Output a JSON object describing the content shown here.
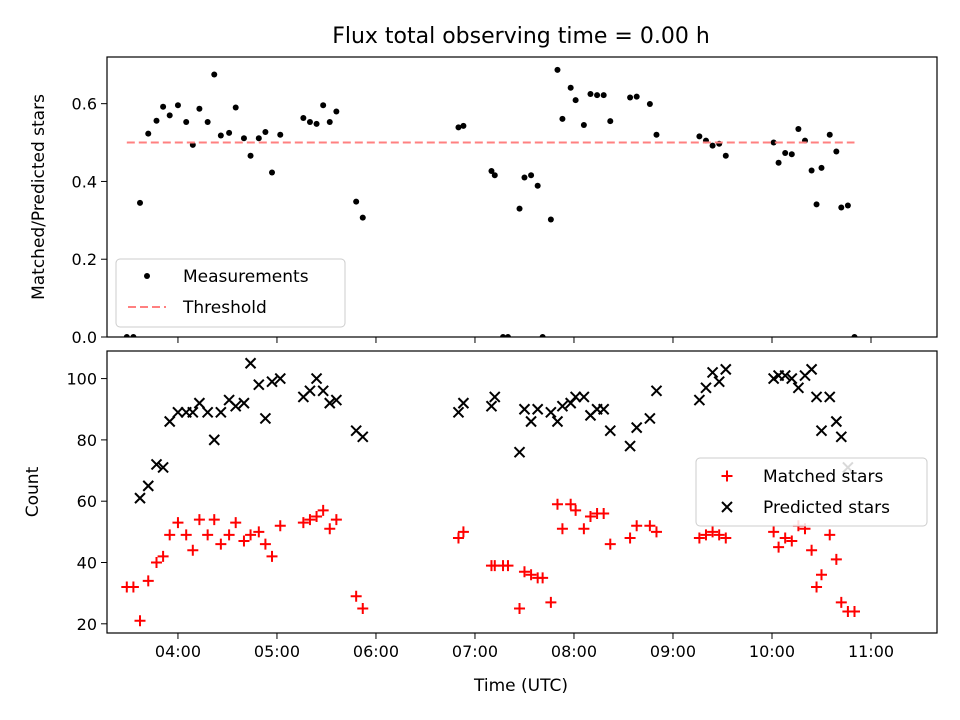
{
  "figure": {
    "title": "Flux total observing time = 0.00 h",
    "xlabel": "Time (UTC)"
  },
  "colors": {
    "measurements": "#000000",
    "threshold": "#ff8080",
    "matched": "#ff0000",
    "predicted": "#000000"
  },
  "chart_data": [
    {
      "type": "scatter",
      "panel": "top",
      "ylabel": "Matched/Predicted stars",
      "xlim": [
        "03:17",
        "11:40"
      ],
      "ylim": [
        0,
        0.72
      ],
      "xticks": [
        "04:00",
        "05:00",
        "06:00",
        "07:00",
        "08:00",
        "09:00",
        "10:00",
        "11:00"
      ],
      "yticks": [
        0.0,
        0.2,
        0.4,
        0.6
      ],
      "ytick_labels": [
        "0.0",
        "0.2",
        "0.4",
        "0.6"
      ],
      "legend": {
        "placement": "lower-left",
        "entries": [
          "Measurements",
          "Threshold"
        ]
      },
      "series": [
        {
          "name": "Measurements",
          "marker": "dot",
          "points": [
            [
              "03:29",
              0.0
            ],
            [
              "03:33",
              0.0
            ],
            [
              "03:37",
              0.345
            ],
            [
              "03:42",
              0.523
            ],
            [
              "03:47",
              0.556
            ],
            [
              "03:51",
              0.592
            ],
            [
              "03:55",
              0.57
            ],
            [
              "04:00",
              0.596
            ],
            [
              "04:05",
              0.553
            ],
            [
              "04:09",
              0.494
            ],
            [
              "04:13",
              0.587
            ],
            [
              "04:18",
              0.553
            ],
            [
              "04:22",
              0.675
            ],
            [
              "04:26",
              0.518
            ],
            [
              "04:31",
              0.525
            ],
            [
              "04:35",
              0.59
            ],
            [
              "04:40",
              0.511
            ],
            [
              "04:44",
              0.466
            ],
            [
              "04:49",
              0.511
            ],
            [
              "04:53",
              0.527
            ],
            [
              "04:57",
              0.423
            ],
            [
              "05:02",
              0.52
            ],
            [
              "05:16",
              0.563
            ],
            [
              "05:20",
              0.553
            ],
            [
              "05:24",
              0.548
            ],
            [
              "05:28",
              0.596
            ],
            [
              "05:32",
              0.553
            ],
            [
              "05:36",
              0.58
            ],
            [
              "05:48",
              0.348
            ],
            [
              "05:52",
              0.307
            ],
            [
              "06:50",
              0.539
            ],
            [
              "06:53",
              0.543
            ],
            [
              "07:10",
              0.427
            ],
            [
              "07:12",
              0.416
            ],
            [
              "07:17",
              0.0
            ],
            [
              "07:20",
              0.0
            ],
            [
              "07:27",
              0.33
            ],
            [
              "07:30",
              0.41
            ],
            [
              "07:34",
              0.416
            ],
            [
              "07:38",
              0.389
            ],
            [
              "07:41",
              0.0
            ],
            [
              "07:46",
              0.302
            ],
            [
              "07:50",
              0.687
            ],
            [
              "07:53",
              0.561
            ],
            [
              "07:58",
              0.641
            ],
            [
              "08:01",
              0.609
            ],
            [
              "08:06",
              0.545
            ],
            [
              "08:10",
              0.625
            ],
            [
              "08:14",
              0.622
            ],
            [
              "08:18",
              0.622
            ],
            [
              "08:22",
              0.555
            ],
            [
              "08:34",
              0.616
            ],
            [
              "08:38",
              0.618
            ],
            [
              "08:46",
              0.599
            ],
            [
              "08:50",
              0.52
            ],
            [
              "09:16",
              0.516
            ],
            [
              "09:20",
              0.505
            ],
            [
              "09:24",
              0.492
            ],
            [
              "09:28",
              0.497
            ],
            [
              "09:32",
              0.466
            ],
            [
              "10:01",
              0.5
            ],
            [
              "10:04",
              0.448
            ],
            [
              "10:08",
              0.473
            ],
            [
              "10:12",
              0.47
            ],
            [
              "10:16",
              0.535
            ],
            [
              "10:20",
              0.505
            ],
            [
              "10:24",
              0.428
            ],
            [
              "10:27",
              0.341
            ],
            [
              "10:30",
              0.435
            ],
            [
              "10:35",
              0.52
            ],
            [
              "10:39",
              0.477
            ],
            [
              "10:42",
              0.333
            ],
            [
              "10:46",
              0.338
            ],
            [
              "10:50",
              0.0
            ]
          ]
        },
        {
          "name": "Threshold",
          "marker": "dashed-line",
          "points": [
            [
              "03:29",
              0.5
            ],
            [
              "10:50",
              0.5
            ]
          ]
        }
      ]
    },
    {
      "type": "scatter",
      "panel": "bottom",
      "ylabel": "Count",
      "xlim": [
        "03:17",
        "11:40"
      ],
      "ylim": [
        17,
        109
      ],
      "xticks": [
        "04:00",
        "05:00",
        "06:00",
        "07:00",
        "08:00",
        "09:00",
        "10:00",
        "11:00"
      ],
      "yticks": [
        20,
        40,
        60,
        80,
        100
      ],
      "ytick_labels": [
        "20",
        "40",
        "60",
        "80",
        "100"
      ],
      "legend": {
        "placement": "center-right",
        "entries": [
          "Matched stars",
          "Predicted stars"
        ]
      },
      "series": [
        {
          "name": "Matched stars",
          "marker": "plus",
          "points": [
            [
              "03:29",
              32
            ],
            [
              "03:33",
              32
            ],
            [
              "03:37",
              21
            ],
            [
              "03:42",
              34
            ],
            [
              "03:47",
              40
            ],
            [
              "03:51",
              42
            ],
            [
              "03:55",
              49
            ],
            [
              "04:00",
              53
            ],
            [
              "04:05",
              49
            ],
            [
              "04:09",
              44
            ],
            [
              "04:13",
              54
            ],
            [
              "04:18",
              49
            ],
            [
              "04:22",
              54
            ],
            [
              "04:26",
              46
            ],
            [
              "04:31",
              49
            ],
            [
              "04:35",
              53
            ],
            [
              "04:40",
              47
            ],
            [
              "04:44",
              49
            ],
            [
              "04:49",
              50
            ],
            [
              "04:53",
              46
            ],
            [
              "04:57",
              42
            ],
            [
              "05:02",
              52
            ],
            [
              "05:16",
              53
            ],
            [
              "05:20",
              54
            ],
            [
              "05:24",
              55
            ],
            [
              "05:28",
              57
            ],
            [
              "05:32",
              51
            ],
            [
              "05:36",
              54
            ],
            [
              "05:48",
              29
            ],
            [
              "05:52",
              25
            ],
            [
              "06:50",
              48
            ],
            [
              "06:53",
              50
            ],
            [
              "07:10",
              39
            ],
            [
              "07:12",
              39
            ],
            [
              "07:17",
              39
            ],
            [
              "07:20",
              39
            ],
            [
              "07:27",
              25
            ],
            [
              "07:30",
              37
            ],
            [
              "07:34",
              36
            ],
            [
              "07:38",
              35
            ],
            [
              "07:41",
              35
            ],
            [
              "07:46",
              27
            ],
            [
              "07:50",
              59
            ],
            [
              "07:53",
              51
            ],
            [
              "07:58",
              59
            ],
            [
              "08:01",
              57
            ],
            [
              "08:06",
              51
            ],
            [
              "08:10",
              55
            ],
            [
              "08:14",
              56
            ],
            [
              "08:18",
              56
            ],
            [
              "08:22",
              46
            ],
            [
              "08:34",
              48
            ],
            [
              "08:38",
              52
            ],
            [
              "08:46",
              52
            ],
            [
              "08:50",
              50
            ],
            [
              "09:16",
              48
            ],
            [
              "09:20",
              49
            ],
            [
              "09:24",
              50
            ],
            [
              "09:28",
              49
            ],
            [
              "09:32",
              48
            ],
            [
              "10:01",
              50
            ],
            [
              "10:04",
              45
            ],
            [
              "10:08",
              48
            ],
            [
              "10:12",
              47
            ],
            [
              "10:16",
              52
            ],
            [
              "10:20",
              51
            ],
            [
              "10:24",
              44
            ],
            [
              "10:27",
              32
            ],
            [
              "10:30",
              36
            ],
            [
              "10:35",
              49
            ],
            [
              "10:39",
              41
            ],
            [
              "10:42",
              27
            ],
            [
              "10:46",
              24
            ],
            [
              "10:50",
              24
            ]
          ]
        },
        {
          "name": "Predicted stars",
          "marker": "x",
          "points": [
            [
              "03:37",
              61
            ],
            [
              "03:42",
              65
            ],
            [
              "03:47",
              72
            ],
            [
              "03:51",
              71
            ],
            [
              "03:55",
              86
            ],
            [
              "04:00",
              89
            ],
            [
              "04:05",
              89
            ],
            [
              "04:09",
              89
            ],
            [
              "04:13",
              92
            ],
            [
              "04:18",
              89
            ],
            [
              "04:22",
              80
            ],
            [
              "04:26",
              89
            ],
            [
              "04:31",
              93
            ],
            [
              "04:35",
              91
            ],
            [
              "04:40",
              92
            ],
            [
              "04:44",
              105
            ],
            [
              "04:49",
              98
            ],
            [
              "04:53",
              87
            ],
            [
              "04:57",
              99
            ],
            [
              "05:02",
              100
            ],
            [
              "05:16",
              94
            ],
            [
              "05:20",
              96
            ],
            [
              "05:24",
              100
            ],
            [
              "05:28",
              96
            ],
            [
              "05:32",
              92
            ],
            [
              "05:36",
              93
            ],
            [
              "05:48",
              83
            ],
            [
              "05:52",
              81
            ],
            [
              "06:50",
              89
            ],
            [
              "06:53",
              92
            ],
            [
              "07:10",
              91
            ],
            [
              "07:12",
              94
            ],
            [
              "07:27",
              76
            ],
            [
              "07:30",
              90
            ],
            [
              "07:34",
              86
            ],
            [
              "07:38",
              90
            ],
            [
              "07:46",
              89
            ],
            [
              "07:50",
              86
            ],
            [
              "07:53",
              91
            ],
            [
              "07:58",
              92
            ],
            [
              "08:01",
              94
            ],
            [
              "08:06",
              94
            ],
            [
              "08:10",
              88
            ],
            [
              "08:14",
              90
            ],
            [
              "08:18",
              90
            ],
            [
              "08:22",
              83
            ],
            [
              "08:34",
              78
            ],
            [
              "08:38",
              84
            ],
            [
              "08:46",
              87
            ],
            [
              "08:50",
              96
            ],
            [
              "09:16",
              93
            ],
            [
              "09:20",
              97
            ],
            [
              "09:24",
              102
            ],
            [
              "09:28",
              99
            ],
            [
              "09:32",
              103
            ],
            [
              "10:01",
              100
            ],
            [
              "10:04",
              101
            ],
            [
              "10:08",
              101
            ],
            [
              "10:12",
              100
            ],
            [
              "10:16",
              97
            ],
            [
              "10:20",
              101
            ],
            [
              "10:24",
              103
            ],
            [
              "10:27",
              94
            ],
            [
              "10:30",
              83
            ],
            [
              "10:35",
              94
            ],
            [
              "10:39",
              86
            ],
            [
              "10:42",
              81
            ],
            [
              "10:46",
              71
            ]
          ]
        }
      ]
    }
  ]
}
